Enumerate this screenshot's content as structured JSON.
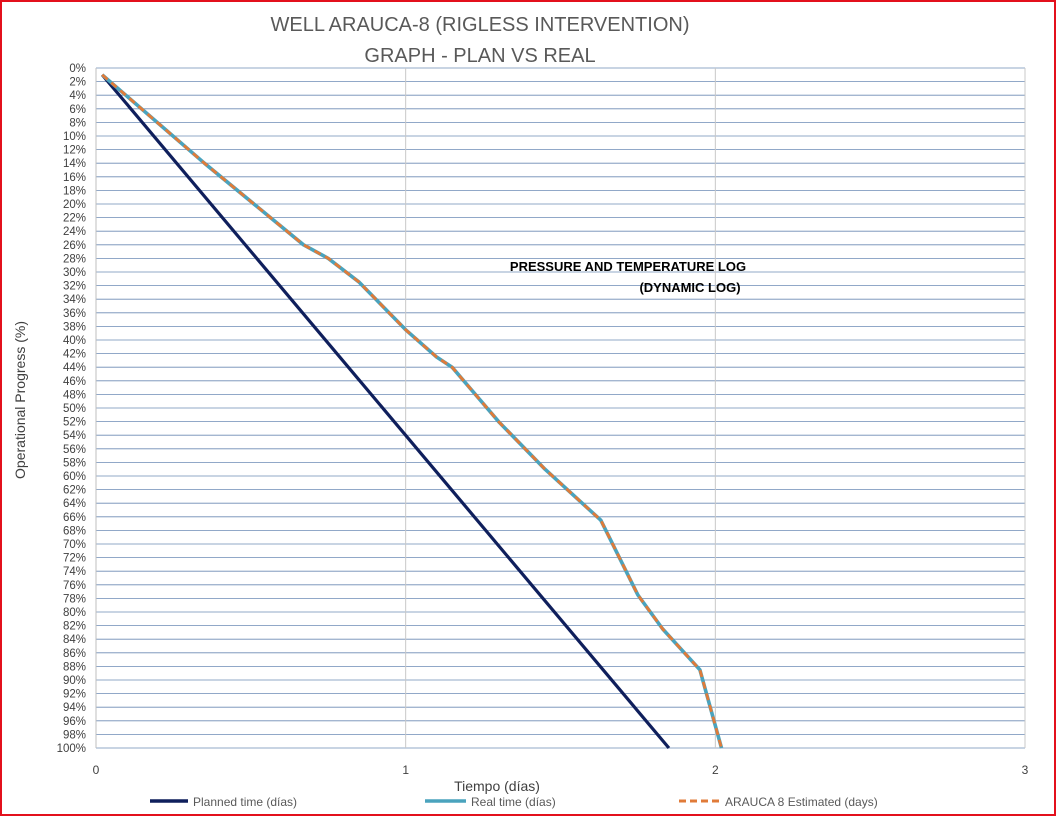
{
  "colors": {
    "frame": "#e3101c",
    "grid_h": "#6d8bb5",
    "grid_v": "#c8c8c8",
    "planned": "#0f1f5c",
    "real": "#4aa3bd",
    "estimated": "#e07b39",
    "annotation": "#000000"
  },
  "chart_data": {
    "type": "line",
    "title": [
      "WELL ARAUCA-8 (RIGLESS INTERVENTION)",
      "GRAPH  - PLAN VS REAL"
    ],
    "xlabel": "Tiempo (días)",
    "ylabel": "Operational Progress (%)",
    "xlim": [
      0,
      3
    ],
    "ylim": [
      0,
      100
    ],
    "y_inverted": true,
    "x_ticks": [
      "0",
      "1",
      "2",
      "3"
    ],
    "y_ticks": [
      "0%",
      "2%",
      "4%",
      "6%",
      "8%",
      "10%",
      "12%",
      "14%",
      "16%",
      "18%",
      "20%",
      "22%",
      "24%",
      "26%",
      "28%",
      "30%",
      "32%",
      "34%",
      "36%",
      "38%",
      "40%",
      "42%",
      "44%",
      "46%",
      "48%",
      "50%",
      "52%",
      "54%",
      "56%",
      "58%",
      "60%",
      "62%",
      "64%",
      "66%",
      "68%",
      "70%",
      "72%",
      "74%",
      "76%",
      "78%",
      "80%",
      "82%",
      "84%",
      "86%",
      "88%",
      "90%",
      "92%",
      "94%",
      "96%",
      "98%",
      "100%"
    ],
    "legend_position": "bottom",
    "annotation": [
      "PRESSURE AND TEMPERATURE LOG",
      "(DYNAMIC LOG)"
    ],
    "series": [
      {
        "name": "Planned time (días)",
        "style": "solid",
        "x": [
          0.02,
          1.85
        ],
        "y": [
          1,
          100
        ]
      },
      {
        "name": "Real time (días)",
        "style": "solid",
        "x": [
          0.02,
          0.35,
          0.67,
          0.75,
          0.85,
          1.0,
          1.1,
          1.15,
          1.3,
          1.45,
          1.63,
          1.75,
          1.83,
          1.95,
          2.02
        ],
        "y": [
          1,
          14,
          26,
          28,
          31.5,
          38.5,
          42.5,
          44,
          52,
          59,
          66.5,
          77.5,
          82.5,
          88.5,
          100
        ]
      },
      {
        "name": "ARAUCA 8 Estimated (days)",
        "style": "dashed",
        "x": [
          0.02,
          0.35,
          0.67,
          0.75,
          0.85,
          1.0,
          1.1,
          1.15,
          1.3,
          1.45,
          1.63,
          1.75,
          1.83,
          1.95,
          2.02
        ],
        "y": [
          1,
          14,
          26,
          28,
          31.5,
          38.5,
          42.5,
          44,
          52,
          59,
          66.5,
          77.5,
          82.5,
          88.5,
          100
        ]
      }
    ]
  }
}
